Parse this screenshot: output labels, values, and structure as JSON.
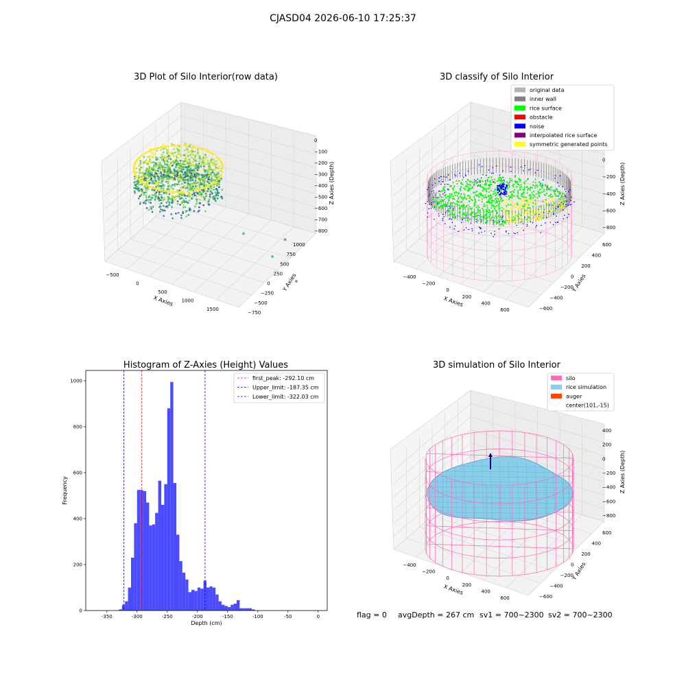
{
  "figure": {
    "suptitle": "CJASD04 2026-06-10 17:25:37",
    "footer": {
      "flag": "flag = 0",
      "avg_depth": "avgDepth = 267 cm",
      "sv1": "sv1 = 700~2300",
      "sv2": "sv2 = 700~2300"
    }
  },
  "chart_data": [
    {
      "type": "scatter3d",
      "title": "3D Plot of Silo Interior(row data)",
      "xlabel": "X Axies",
      "ylabel": "Y Axies",
      "zlabel": "Z Axies (Depth)",
      "xticks": [
        "−500",
        "0",
        "500",
        "1000",
        "1500"
      ],
      "yticks": [
        "−750",
        "−500",
        "−250",
        "0",
        "250",
        "500",
        "750",
        "1000"
      ],
      "zticks": [
        "0",
        "−100",
        "−200",
        "−300",
        "−400",
        "−500",
        "−600",
        "−700",
        "−800"
      ],
      "colormap": [
        "#3b528b",
        "#21918c",
        "#5ec962",
        "#b5de2b",
        "#fde725"
      ],
      "outliers": [
        {
          "x": 1150,
          "y": 500,
          "z": -430
        },
        {
          "x": 1450,
          "y": 650,
          "z": -500
        },
        {
          "x": 1500,
          "y": 820,
          "z": -400
        },
        {
          "x": 1600,
          "y": 900,
          "z": -560
        }
      ]
    },
    {
      "type": "scatter3d",
      "title": "3D classify of Silo Interior",
      "xlabel": "X Axies",
      "ylabel": "Y Axies",
      "zlabel": "Z Axies (Depth)",
      "xticks": [
        "−400",
        "−200",
        "0",
        "200",
        "400",
        "600"
      ],
      "yticks": [
        "−600",
        "−400",
        "−200",
        "0",
        "200",
        "400",
        "600"
      ],
      "zticks": [
        "200",
        "0",
        "−200",
        "−400",
        "−600",
        "−800"
      ],
      "legend": [
        {
          "label": "original data",
          "color": "#b3b3b3"
        },
        {
          "label": "inner wall",
          "color": "#808080"
        },
        {
          "label": "rice surface",
          "color": "#00ff00"
        },
        {
          "label": "obstacle",
          "color": "#ff0000"
        },
        {
          "label": "noise",
          "color": "#0000ff"
        },
        {
          "label": "interpolated rice surface",
          "color": "#800080"
        },
        {
          "label": "symmetric generated points",
          "color": "#ffff00"
        }
      ]
    },
    {
      "type": "bar",
      "title": "Histogram of Z-Axies (Height) Values",
      "xlabel": "Depth (cm)",
      "ylabel": "Frequency",
      "xlim": [
        -385,
        15
      ],
      "ylim": [
        0,
        1045
      ],
      "xticks": [
        -350,
        -300,
        -250,
        -200,
        -150,
        -100,
        -50,
        0
      ],
      "yticks": [
        0,
        200,
        400,
        600,
        800,
        1000
      ],
      "bar_color": "#4b4bff",
      "bins": [
        {
          "x0": -330,
          "x1": -325,
          "v": 5
        },
        {
          "x0": -325,
          "x1": -320,
          "v": 25
        },
        {
          "x0": -320,
          "x1": -315,
          "v": 40
        },
        {
          "x0": -315,
          "x1": -310,
          "v": 100
        },
        {
          "x0": -310,
          "x1": -305,
          "v": 230
        },
        {
          "x0": -305,
          "x1": -300,
          "v": 380
        },
        {
          "x0": -300,
          "x1": -295,
          "v": 525
        },
        {
          "x0": -295,
          "x1": -290,
          "v": 525
        },
        {
          "x0": -290,
          "x1": -285,
          "v": 520
        },
        {
          "x0": -285,
          "x1": -280,
          "v": 470
        },
        {
          "x0": -280,
          "x1": -275,
          "v": 370
        },
        {
          "x0": -275,
          "x1": -270,
          "v": 375
        },
        {
          "x0": -270,
          "x1": -265,
          "v": 425
        },
        {
          "x0": -265,
          "x1": -260,
          "v": 565
        },
        {
          "x0": -260,
          "x1": -255,
          "v": 460
        },
        {
          "x0": -255,
          "x1": -250,
          "v": 550
        },
        {
          "x0": -250,
          "x1": -245,
          "v": 880
        },
        {
          "x0": -245,
          "x1": -240,
          "v": 995
        },
        {
          "x0": -240,
          "x1": -235,
          "v": 555
        },
        {
          "x0": -235,
          "x1": -230,
          "v": 330
        },
        {
          "x0": -230,
          "x1": -225,
          "v": 215
        },
        {
          "x0": -225,
          "x1": -220,
          "v": 165
        },
        {
          "x0": -220,
          "x1": -215,
          "v": 135
        },
        {
          "x0": -215,
          "x1": -210,
          "v": 80
        },
        {
          "x0": -210,
          "x1": -205,
          "v": 90
        },
        {
          "x0": -205,
          "x1": -200,
          "v": 85
        },
        {
          "x0": -200,
          "x1": -195,
          "v": 100
        },
        {
          "x0": -195,
          "x1": -190,
          "v": 95
        },
        {
          "x0": -190,
          "x1": -185,
          "v": 130
        },
        {
          "x0": -185,
          "x1": -180,
          "v": 100
        },
        {
          "x0": -180,
          "x1": -175,
          "v": 105
        },
        {
          "x0": -175,
          "x1": -170,
          "v": 100
        },
        {
          "x0": -170,
          "x1": -165,
          "v": 70
        },
        {
          "x0": -165,
          "x1": -160,
          "v": 40
        },
        {
          "x0": -160,
          "x1": -155,
          "v": 25
        },
        {
          "x0": -155,
          "x1": -150,
          "v": 20
        },
        {
          "x0": -150,
          "x1": -145,
          "v": 15
        },
        {
          "x0": -145,
          "x1": -140,
          "v": 25
        },
        {
          "x0": -140,
          "x1": -135,
          "v": 30
        },
        {
          "x0": -135,
          "x1": -130,
          "v": 45
        },
        {
          "x0": -130,
          "x1": -125,
          "v": 10
        },
        {
          "x0": -125,
          "x1": -120,
          "v": 10
        },
        {
          "x0": -120,
          "x1": -115,
          "v": 10
        },
        {
          "x0": -115,
          "x1": -110,
          "v": 10
        },
        {
          "x0": -110,
          "x1": -105,
          "v": 5
        }
      ],
      "vlines": [
        {
          "label": "first_peak: -292.10 cm",
          "x": -292.1,
          "color": "#ff0000"
        },
        {
          "label": "Upper_limit: -187.35 cm",
          "x": -187.35,
          "color": "#0000ff"
        },
        {
          "label": "Lower_limit: -322.03 cm",
          "x": -322.03,
          "color": "#0000ff"
        }
      ]
    },
    {
      "type": "surface3d",
      "title": "3D simulation of Silo Interior",
      "xlabel": "X Axies",
      "ylabel": "Y Axies",
      "zlabel": "Z Axies (Depth)",
      "xticks": [
        "−400",
        "−200",
        "0",
        "200",
        "400",
        "600"
      ],
      "yticks": [
        "−600",
        "−400",
        "−200",
        "0",
        "200",
        "400",
        "600"
      ],
      "zticks": [
        "400",
        "200",
        "0",
        "−200",
        "−400",
        "−600",
        "−800"
      ],
      "legend": [
        {
          "label": "silo",
          "color": "#ff69b4"
        },
        {
          "label": "rice simulation",
          "color": "#87ceeb"
        },
        {
          "label": "auger",
          "color": "#ff4500"
        },
        {
          "label": "center(101,-15)",
          "color": ""
        }
      ]
    }
  ]
}
